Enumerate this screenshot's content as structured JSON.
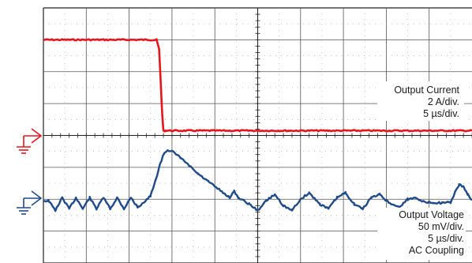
{
  "chart_data": {
    "type": "line",
    "grid": true,
    "grid_divisions": {
      "x": 10,
      "y": 8
    },
    "channels": [
      {
        "name": "Output Current",
        "scale": "2 A/div.",
        "timebase": "5 µs/div.",
        "coupling": "",
        "color": "#e8141b",
        "x_units": "div",
        "y_units": "div from top",
        "points": [
          [
            0,
            1.0
          ],
          [
            2.6,
            1.0
          ],
          [
            2.64,
            1.0
          ],
          [
            2.7,
            1.3
          ],
          [
            2.74,
            2.4
          ],
          [
            2.77,
            3.3
          ],
          [
            2.8,
            3.85
          ],
          [
            2.85,
            3.85
          ],
          [
            10,
            3.85
          ]
        ]
      },
      {
        "name": "Output Voltage",
        "scale": "50 mV/div.",
        "timebase": "5 µs/div.",
        "coupling": "AC Coupling",
        "color": "#1f4a8c",
        "x_units": "div",
        "y_units": "div from top",
        "points": [
          [
            0,
            6.05
          ],
          [
            0.12,
            6.05
          ],
          [
            0.28,
            6.35
          ],
          [
            0.44,
            5.95
          ],
          [
            0.6,
            6.3
          ],
          [
            0.76,
            5.95
          ],
          [
            0.92,
            6.3
          ],
          [
            1.08,
            5.95
          ],
          [
            1.24,
            6.3
          ],
          [
            1.4,
            5.95
          ],
          [
            1.56,
            6.3
          ],
          [
            1.72,
            5.95
          ],
          [
            1.88,
            6.3
          ],
          [
            2.04,
            5.95
          ],
          [
            2.2,
            6.25
          ],
          [
            2.38,
            6.05
          ],
          [
            2.5,
            5.9
          ],
          [
            2.62,
            5.4
          ],
          [
            2.72,
            4.9
          ],
          [
            2.82,
            4.55
          ],
          [
            2.9,
            4.45
          ],
          [
            3.0,
            4.5
          ],
          [
            3.2,
            4.7
          ],
          [
            3.4,
            4.95
          ],
          [
            3.6,
            5.2
          ],
          [
            3.85,
            5.45
          ],
          [
            4.1,
            5.7
          ],
          [
            4.35,
            5.95
          ],
          [
            4.45,
            5.75
          ],
          [
            4.55,
            5.95
          ],
          [
            4.8,
            6.15
          ],
          [
            5.0,
            6.35
          ],
          [
            5.2,
            6.05
          ],
          [
            5.4,
            5.85
          ],
          [
            5.6,
            6.2
          ],
          [
            5.8,
            6.35
          ],
          [
            6.0,
            6.0
          ],
          [
            6.2,
            5.8
          ],
          [
            6.45,
            6.15
          ],
          [
            6.65,
            6.3
          ],
          [
            6.85,
            5.95
          ],
          [
            7.05,
            5.8
          ],
          [
            7.25,
            6.15
          ],
          [
            7.45,
            6.3
          ],
          [
            7.65,
            5.95
          ],
          [
            7.85,
            5.85
          ],
          [
            8.05,
            6.1
          ],
          [
            8.3,
            6.25
          ],
          [
            8.5,
            6.0
          ],
          [
            8.7,
            5.95
          ],
          [
            8.9,
            6.1
          ],
          [
            9.1,
            6.1
          ],
          [
            9.3,
            6.12
          ],
          [
            9.5,
            6.1
          ],
          [
            9.6,
            5.8
          ],
          [
            9.7,
            5.55
          ],
          [
            9.8,
            5.6
          ],
          [
            9.9,
            5.85
          ],
          [
            10,
            6.05
          ]
        ]
      }
    ]
  },
  "markers": {
    "ch1_marker_icon": "arrow-right-icon",
    "ch2_marker_icon": "arrow-right-icon",
    "ground_icon": "ground-icon"
  }
}
